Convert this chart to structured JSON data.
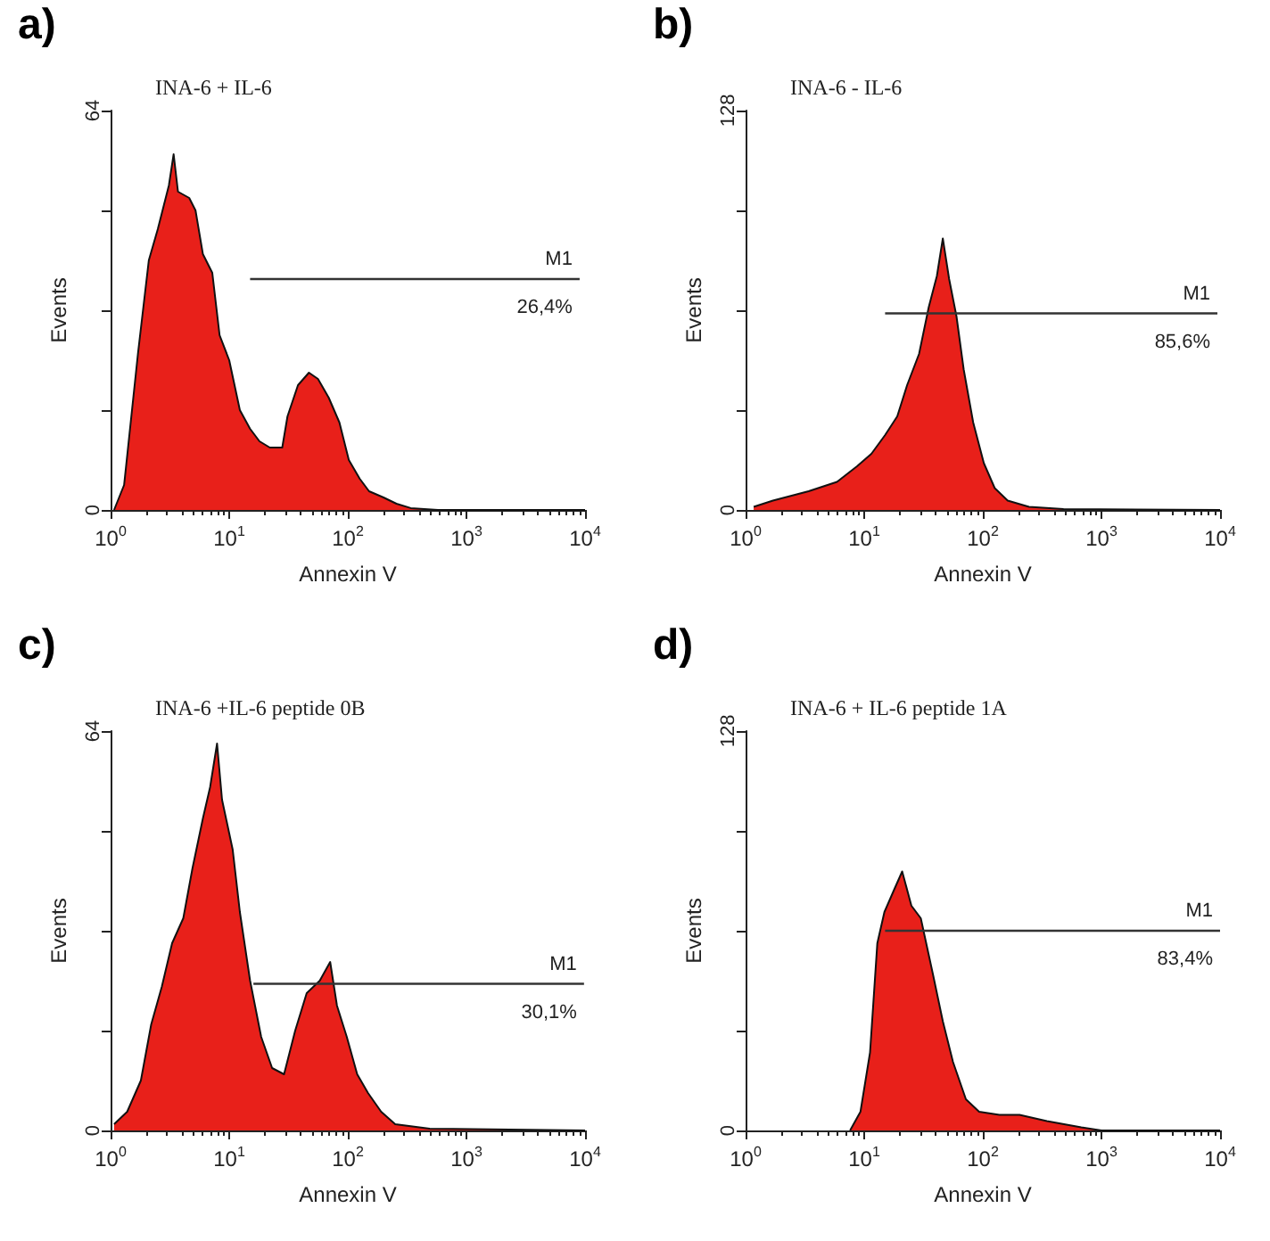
{
  "chart_data": [
    {
      "type": "area",
      "title": "INA-6 + IL-6",
      "xlabel": "Annexin V",
      "ylabel": "Events",
      "annotations": [
        "a)",
        "M1",
        "26,4%"
      ],
      "log": "x",
      "xlim": [
        1,
        10000
      ],
      "xticks": [
        {
          "value": 1,
          "label": "10$^{0}$"
        },
        {
          "value": 10,
          "label": "10$^{1}$"
        },
        {
          "value": 100,
          "label": "10$^{2}$"
        },
        {
          "value": 1000,
          "label": "10$^{3}$"
        },
        {
          "value": 10000,
          "label": "10$^{4}$"
        }
      ],
      "ylim": [
        0,
        64
      ],
      "yticks": [
        0,
        {
          "value": 16,
          "label": null
        },
        {
          "value": 32,
          "label": null
        },
        {
          "value": 48,
          "label": null
        },
        64
      ],
      "grid": false,
      "series": [
        {
          "color": "#e8201a",
          "x": [
            1.07,
            1.3,
            1.7,
            2.1,
            2.5,
            3.1,
            3.4,
            3.7,
            4.6,
            5.2,
            6.0,
            7.2,
            8.3,
            10,
            12.3,
            15,
            18,
            22,
            28,
            31,
            38,
            47,
            56,
            69,
            85,
            102,
            126,
            151,
            200,
            257,
            339,
            575,
            10000
          ],
          "values": [
            0,
            4,
            25,
            40,
            45,
            52,
            57,
            51,
            50,
            48,
            41,
            38,
            28,
            24,
            16,
            13,
            11,
            10,
            10,
            15,
            20,
            22,
            21,
            18,
            14,
            8,
            5,
            3,
            2,
            1,
            0.3,
            0,
            0
          ]
        },
        {
          "type": "line",
          "color": "#333333",
          "marker": "none",
          "x": [
            15,
            9000
          ],
          "values": [
            37,
            37
          ]
        }
      ]
    },
    {
      "type": "area",
      "title": "INA-6 - IL-6",
      "xlabel": "Annexin V",
      "ylabel": "Events",
      "annotations": [
        "b)",
        "M1",
        "85,6%"
      ],
      "log": "x",
      "xlim": [
        1,
        10000
      ],
      "xticks": [
        {
          "value": 1,
          "label": "10$^{0}$"
        },
        {
          "value": 10,
          "label": "10$^{1}$"
        },
        {
          "value": 100,
          "label": "10$^{2}$"
        },
        {
          "value": 1000,
          "label": "10$^{3}$"
        },
        {
          "value": 10000,
          "label": "10$^{4}$"
        }
      ],
      "ylim": [
        0,
        128
      ],
      "yticks": [
        0,
        {
          "value": 32,
          "label": null
        },
        {
          "value": 64,
          "label": null
        },
        {
          "value": 96,
          "label": null
        },
        128
      ],
      "grid": false,
      "series": [
        {
          "color": "#e8201a",
          "x": [
            1.17,
            1.7,
            3.4,
            5.9,
            8.7,
            11.5,
            15,
            19,
            23,
            29,
            35,
            41,
            46,
            52,
            60,
            69,
            83,
            102,
            126,
            162,
            245,
            479,
            10000
          ],
          "values": [
            1,
            3,
            6,
            9,
            14,
            18,
            24,
            30,
            40,
            50,
            65,
            75,
            87,
            74,
            62,
            45,
            28,
            15,
            7,
            3,
            1,
            0.3,
            0
          ]
        },
        {
          "type": "line",
          "color": "#333333",
          "marker": "none",
          "x": [
            15,
            9500
          ],
          "values": [
            63,
            63
          ]
        }
      ]
    },
    {
      "type": "area",
      "title": "INA-6 +IL-6 peptide 0B",
      "xlabel": "Annexin V",
      "ylabel": "Events",
      "annotations": [
        "c)",
        "M1",
        "30,1%"
      ],
      "log": "x",
      "xlim": [
        1,
        10000
      ],
      "xticks": [
        {
          "value": 1,
          "label": "10$^{0}$"
        },
        {
          "value": 10,
          "label": "10$^{1}$"
        },
        {
          "value": 100,
          "label": "10$^{2}$"
        },
        {
          "value": 1000,
          "label": "10$^{3}$"
        },
        {
          "value": 10000,
          "label": "10$^{4}$"
        }
      ],
      "ylim": [
        0,
        64
      ],
      "yticks": [
        0,
        {
          "value": 16,
          "label": null
        },
        {
          "value": 32,
          "label": null
        },
        {
          "value": 48,
          "label": null
        },
        64
      ],
      "grid": false,
      "series": [
        {
          "color": "#e8201a",
          "x": [
            1.07,
            1.38,
            1.8,
            2.2,
            2.7,
            3.3,
            4.1,
            4.9,
            6.0,
            6.9,
            7.9,
            8.7,
            10.7,
            12.3,
            15,
            18.6,
            23,
            29,
            36,
            45,
            58,
            71,
            81,
            98,
            120,
            148,
            191,
            251,
            490,
            10000
          ],
          "values": [
            1,
            3,
            8,
            17,
            23,
            30,
            34,
            42,
            50,
            55,
            62,
            53,
            45,
            35,
            24,
            15,
            10,
            9,
            16,
            22,
            24,
            27,
            20,
            15,
            9,
            6,
            3,
            1,
            0.3,
            0
          ]
        },
        {
          "type": "line",
          "color": "#333333",
          "marker": "none",
          "x": [
            16,
            9800
          ],
          "values": [
            23.5,
            23.5
          ]
        }
      ]
    },
    {
      "type": "area",
      "title": "INA-6 + IL-6 peptide 1A",
      "xlabel": "Annexin V",
      "ylabel": "Events",
      "annotations": [
        "d)",
        "M1",
        "83,4%"
      ],
      "log": "x",
      "xlim": [
        1,
        10000
      ],
      "xticks": [
        {
          "value": 1,
          "label": "10$^{0}$"
        },
        {
          "value": 10,
          "label": "10$^{1}$"
        },
        {
          "value": 100,
          "label": "10$^{2}$"
        },
        {
          "value": 1000,
          "label": "10$^{3}$"
        },
        {
          "value": 10000,
          "label": "10$^{4}$"
        }
      ],
      "ylim": [
        0,
        128
      ],
      "yticks": [
        0,
        {
          "value": 32,
          "label": null
        },
        {
          "value": 64,
          "label": null
        },
        {
          "value": 96,
          "label": null
        },
        128
      ],
      "grid": false,
      "series": [
        {
          "color": "#e8201a",
          "x": [
            7.6,
            9.3,
            11.2,
            12.9,
            14.8,
            17.8,
            20.9,
            25,
            30,
            38,
            46,
            56,
            72,
            93,
            138,
            204,
            347,
            676,
            1000,
            10000
          ],
          "values": [
            0,
            6,
            25,
            60,
            70,
            77,
            83,
            72,
            68,
            50,
            35,
            22,
            10,
            6,
            5,
            5,
            3,
            1,
            0,
            0
          ]
        },
        {
          "type": "line",
          "color": "#333333",
          "marker": "none",
          "x": [
            15,
            10000
          ],
          "values": [
            64,
            64
          ]
        }
      ]
    }
  ]
}
